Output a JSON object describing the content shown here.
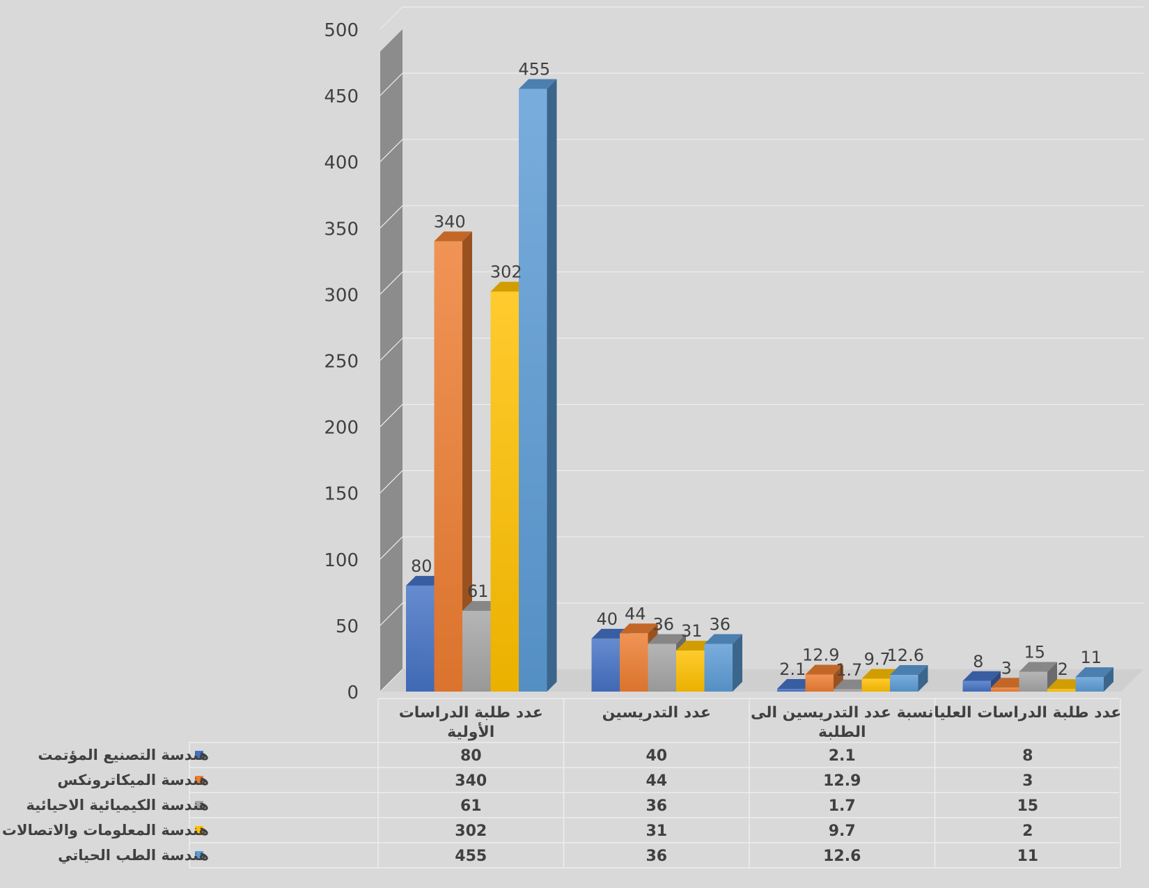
{
  "chart_data": {
    "type": "bar",
    "title": "",
    "xlabel": "",
    "ylabel": "",
    "ylim": [
      0,
      500
    ],
    "yticks": [
      0,
      50,
      100,
      150,
      200,
      250,
      300,
      350,
      400,
      450,
      500
    ],
    "grid": true,
    "legend": "data-table-bottom",
    "categories": [
      {
        "line1": "عدد طلبة الدراسات",
        "line2": "الأولية"
      },
      {
        "line1": "عدد التدريسين",
        "line2": ""
      },
      {
        "line1": "نسبة عدد التدريسين الى",
        "line2": "الطلبة"
      },
      {
        "line1": "عدد طلبة الدراسات العليا",
        "line2": ""
      }
    ],
    "series": [
      {
        "name": "هندسة التصنيع المؤتمت",
        "color": "#4472c4",
        "values": [
          80,
          40,
          2.1,
          8
        ],
        "labels": [
          "80",
          "40",
          "2.1",
          "8"
        ]
      },
      {
        "name": "هندسة الميكاترونكس",
        "color": "#ed7d31",
        "values": [
          340,
          44,
          12.9,
          3
        ],
        "labels": [
          "340",
          "44",
          "12.9",
          "3"
        ]
      },
      {
        "name": "هندسة الكيميائية الاحيائية",
        "color": "#a5a5a5",
        "values": [
          61,
          36,
          1.7,
          15
        ],
        "labels": [
          "61",
          "36",
          "1.7",
          "15"
        ]
      },
      {
        "name": "هندسة المعلومات والاتصالات",
        "color": "#ffc000",
        "values": [
          302,
          31,
          9.7,
          2
        ],
        "labels": [
          "302",
          "31",
          "9.7",
          "2"
        ]
      },
      {
        "name": "هندسة الطب الحياتي",
        "color": "#5b9bd5",
        "values": [
          455,
          36,
          12.6,
          11
        ],
        "labels": [
          "455",
          "36",
          "12.6",
          "11"
        ]
      }
    ]
  }
}
